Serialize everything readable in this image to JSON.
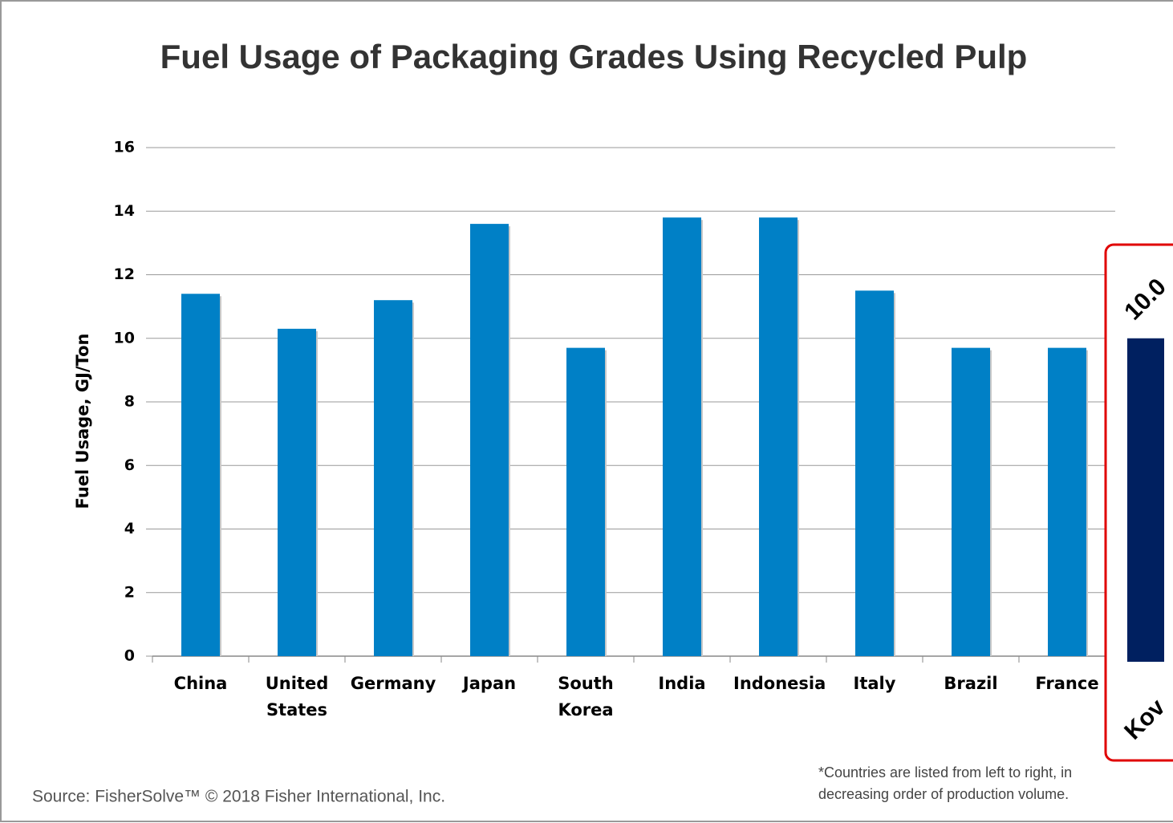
{
  "chart_data": {
    "type": "bar",
    "title": "Fuel Usage of Packaging Grades Using Recycled Pulp",
    "y_label": "Fuel Usage, GJ/Ton",
    "categories": [
      "China",
      "United States",
      "Germany",
      "Japan",
      "South Korea",
      "India",
      "Indonesia",
      "Italy",
      "Brazil",
      "France"
    ],
    "values": [
      11.4,
      10.3,
      11.2,
      13.6,
      9.7,
      13.8,
      13.8,
      11.5,
      9.7,
      9.7
    ],
    "color": "#0080c6",
    "ylim": [
      0,
      16
    ],
    "yticks": [
      0,
      2,
      4,
      6,
      8,
      10,
      12,
      14,
      16
    ],
    "grid": true,
    "source": "Source: FisherSolve™ © 2018 Fisher International, Inc.",
    "footnote": [
      "*Countries are listed from left to right, in",
      "decreasing order of production volume."
    ],
    "inset": {
      "category": "Kov",
      "value": 10.0,
      "value_label": "10.0",
      "color": "#002060",
      "border": "#e00000"
    }
  }
}
